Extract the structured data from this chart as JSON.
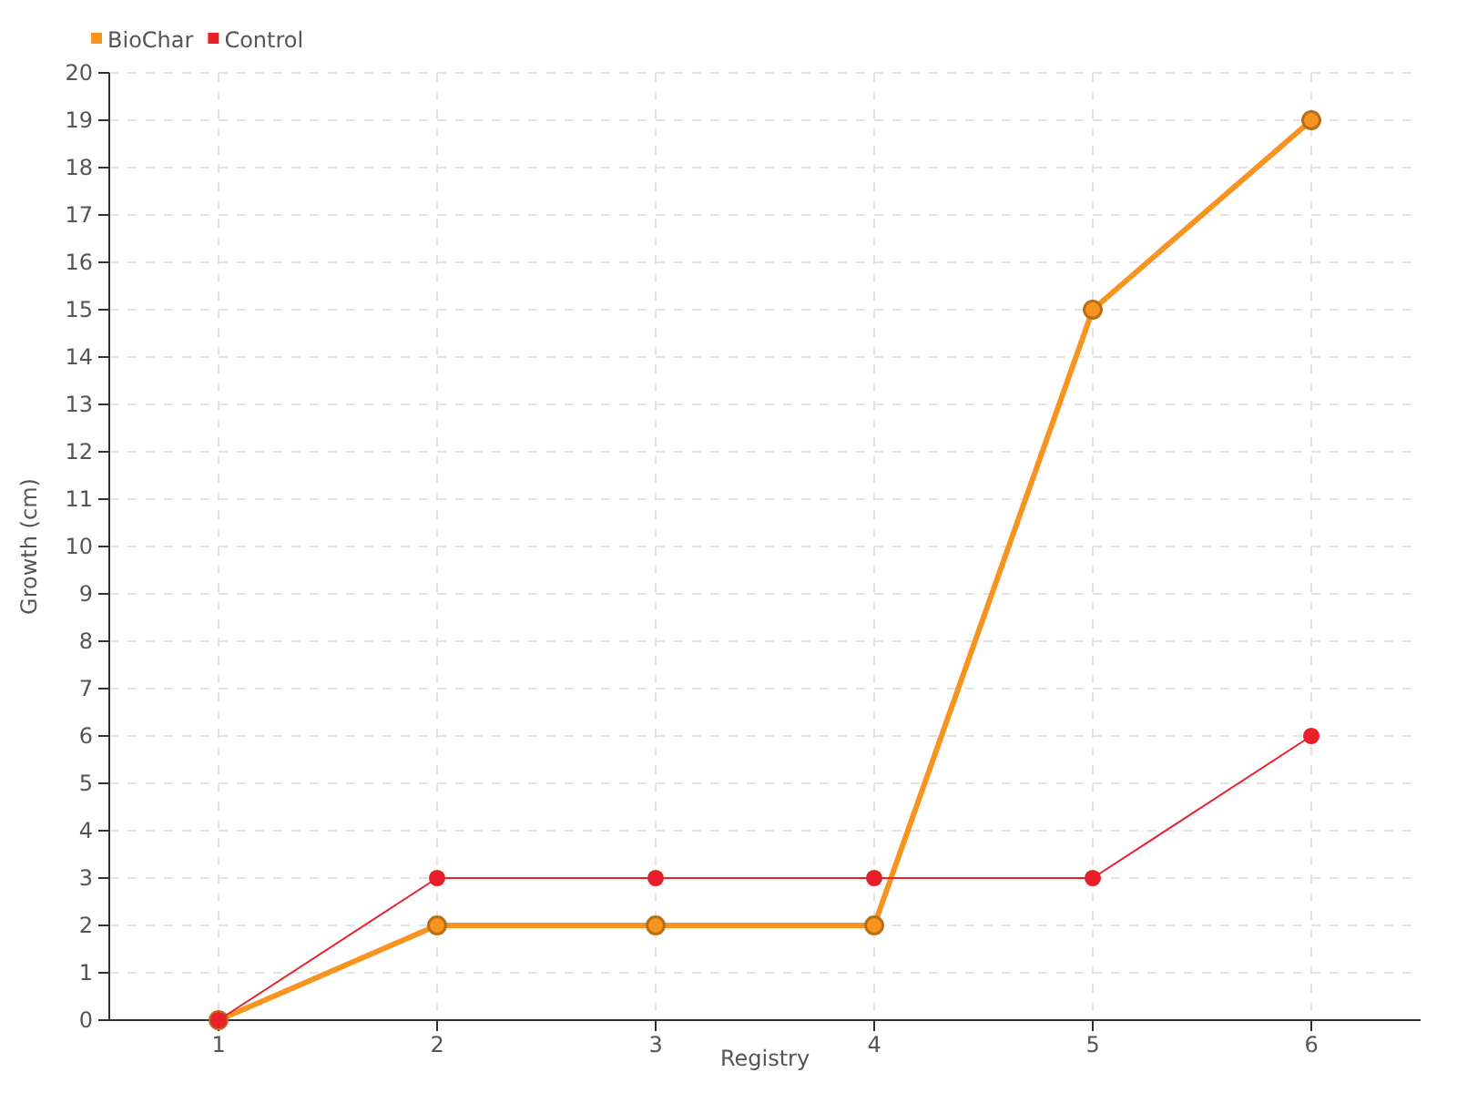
{
  "chart_data": {
    "type": "line",
    "xlabel": "Registry",
    "ylabel": "Growth (cm)",
    "categories": [
      "1",
      "2",
      "3",
      "4",
      "5",
      "6"
    ],
    "series": [
      {
        "name": "BioChar",
        "color": "#f7931e",
        "values": [
          0,
          2,
          2,
          2,
          15,
          19
        ]
      },
      {
        "name": "Control",
        "color": "#e8202a",
        "values": [
          0,
          3,
          3,
          3,
          3,
          6
        ]
      }
    ],
    "ylim": [
      0,
      20
    ],
    "yticks": [
      0,
      1,
      2,
      3,
      4,
      5,
      6,
      7,
      8,
      9,
      10,
      11,
      12,
      13,
      14,
      15,
      16,
      17,
      18,
      19,
      20
    ],
    "grid": true,
    "legend": "top left",
    "marker": "circle",
    "line_style": "solid"
  }
}
